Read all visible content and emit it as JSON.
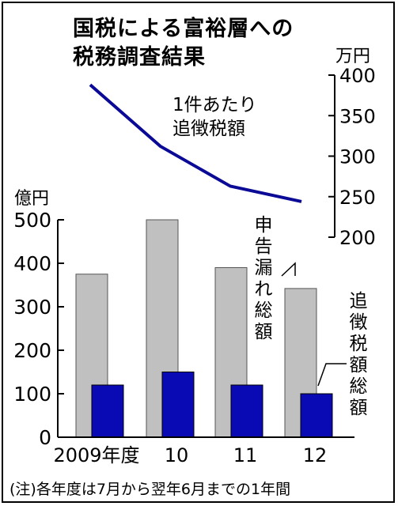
{
  "title_line1": "国税による富裕層への",
  "title_line2": "税務調査結果",
  "note": "(注)各年度は7月から翌年6月までの1年間",
  "labels": {
    "per_case": "1件あたり\n追徴税額",
    "total_unreported": "申告漏れ総額",
    "total_additional": "追徴税額総額"
  },
  "chart_data": [
    {
      "type": "bar",
      "categories": [
        "2009年度",
        "10",
        "11",
        "12"
      ],
      "series": [
        {
          "name": "申告漏れ総額",
          "values": [
            375,
            500,
            390,
            342
          ],
          "color": "#c0c0c0"
        },
        {
          "name": "追徴税額総額",
          "values": [
            120,
            150,
            120,
            100
          ],
          "color": "#0a0ab4"
        }
      ],
      "ylabel": "億円",
      "ylim": [
        0,
        500
      ],
      "yticks": [
        0,
        100,
        200,
        300,
        400,
        500
      ],
      "grid": false
    },
    {
      "type": "line",
      "categories": [
        "2009年度",
        "10",
        "11",
        "12"
      ],
      "series": [
        {
          "name": "1件あたり追徴税額",
          "values": [
            388,
            312,
            263,
            244
          ],
          "color": "#0a0a96"
        }
      ],
      "ylabel": "万円",
      "ylim": [
        200,
        400
      ],
      "yticks": [
        200,
        250,
        300,
        350,
        400
      ],
      "axis_position": "right"
    }
  ]
}
